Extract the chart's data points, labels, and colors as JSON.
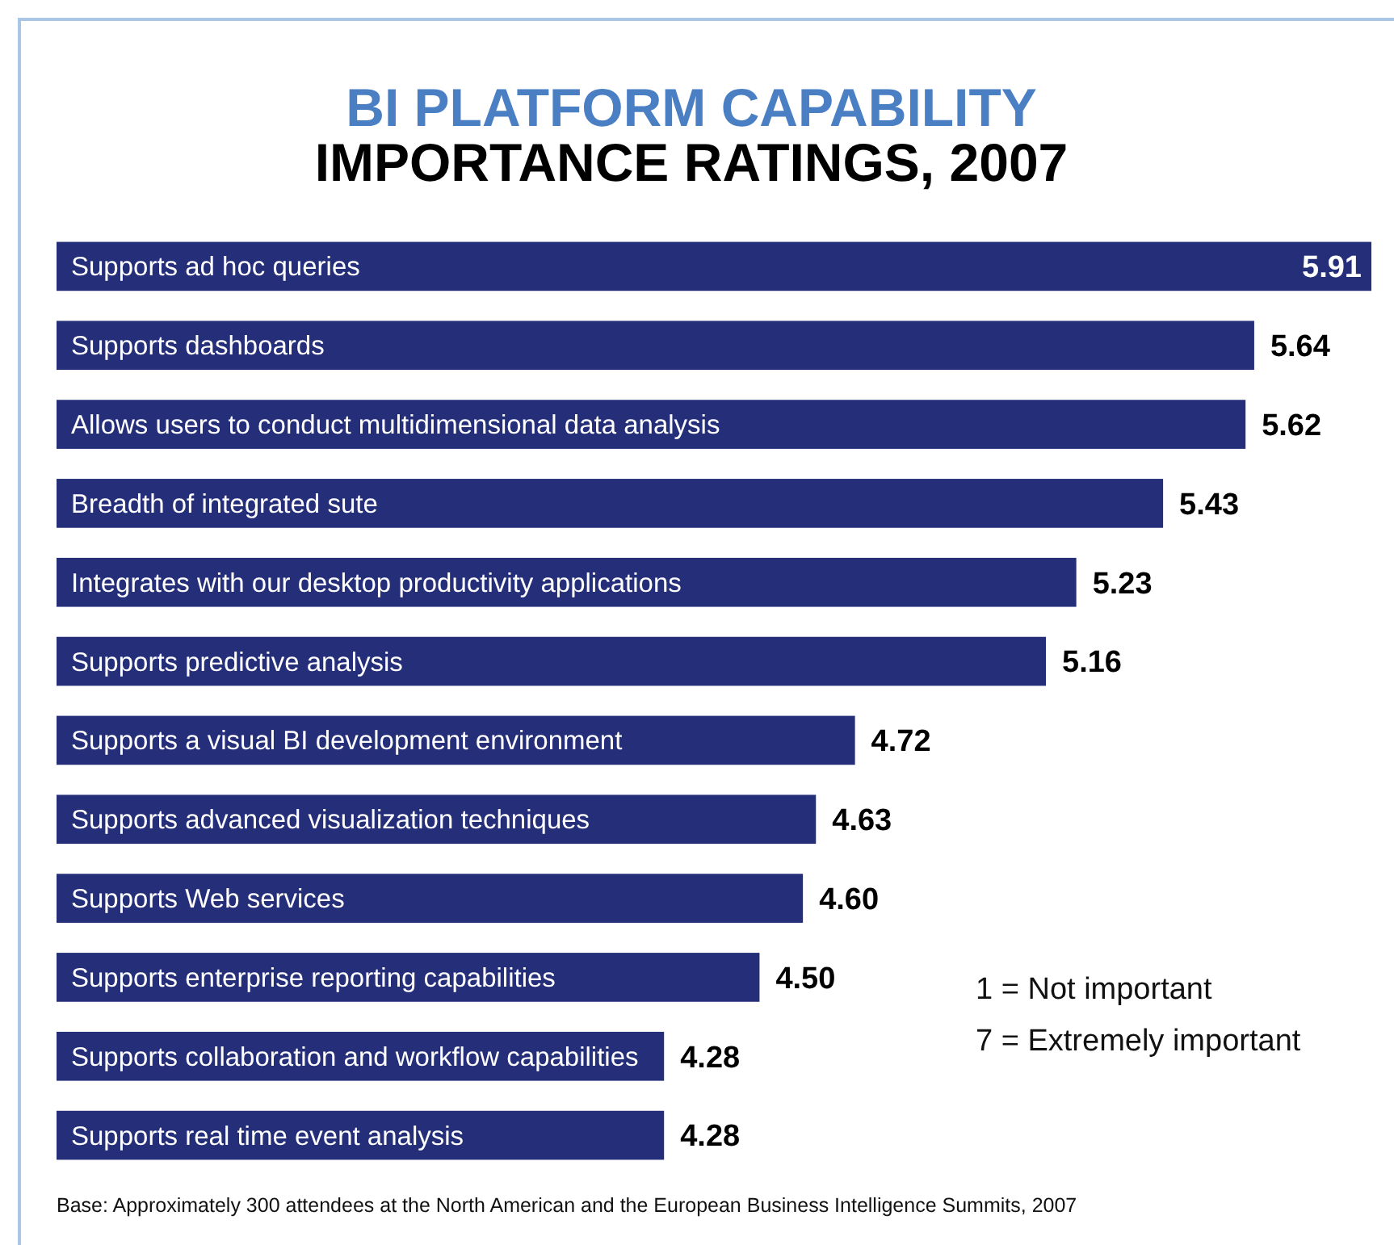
{
  "chart_data": {
    "type": "bar",
    "orientation": "horizontal",
    "title": "BI PLATFORM CAPABILITY",
    "subtitle": "IMPORTANCE RATINGS, 2007",
    "categories": [
      "Supports ad hoc queries",
      "Supports dashboards",
      "Allows users to conduct multidimensional data analysis",
      "Breadth of integrated sute",
      "Integrates with our desktop productivity applications",
      "Supports predictive analysis",
      "Supports a visual BI development environment",
      "Supports advanced visualization techniques",
      "Supports Web services",
      "Supports enterprise reporting capabilities",
      "Supports collaboration and workflow capabilities",
      "Supports real time event analysis"
    ],
    "values": [
      5.91,
      5.64,
      5.62,
      5.43,
      5.23,
      5.16,
      4.72,
      4.63,
      4.6,
      4.5,
      4.28,
      4.28
    ],
    "value_labels": [
      "5.91",
      "5.64",
      "5.62",
      "5.43",
      "5.23",
      "5.16",
      "4.72",
      "4.63",
      "4.60",
      "4.50",
      "4.28",
      "4.28"
    ],
    "color": "#252e78",
    "xlim": [
      2.88,
      5.91
    ],
    "tick_labels": false,
    "annotations": [
      "1 = Not important",
      "7 = Extremely important",
      "Base: Approximately 300 attendees at the North American and the European Business Intelligence Summits, 2007"
    ]
  }
}
